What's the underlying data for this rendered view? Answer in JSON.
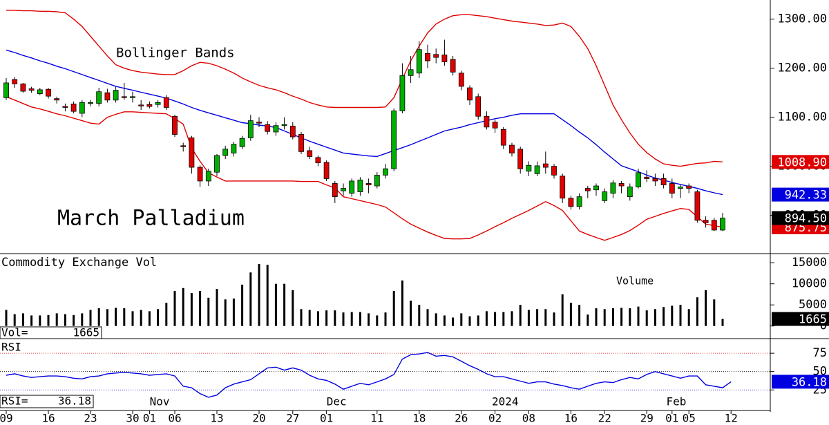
{
  "chart_data": [
    {
      "type": "candlestick",
      "title": "March Palladium",
      "annotation": "Bollinger Bands",
      "categories": [
        "09",
        null,
        null,
        null,
        null,
        "16",
        null,
        null,
        null,
        null,
        "23",
        null,
        null,
        null,
        null,
        "30",
        null,
        "01",
        null,
        null,
        "06",
        null,
        null,
        null,
        null,
        "13",
        null,
        null,
        null,
        null,
        "20",
        null,
        null,
        null,
        "27",
        null,
        null,
        null,
        "01",
        null,
        null,
        null,
        null,
        null,
        "11",
        null,
        null,
        null,
        null,
        "18",
        null,
        null,
        null,
        null,
        "26",
        null,
        null,
        null,
        "02",
        null,
        null,
        null,
        "08",
        null,
        null,
        null,
        null,
        "16",
        null,
        null,
        null,
        "22",
        null,
        null,
        null,
        null,
        "29",
        null,
        null,
        "01",
        null,
        "05",
        null,
        null,
        null,
        null,
        "12"
      ],
      "month_labels": [
        "Nov",
        "Dec",
        "2024",
        "Feb"
      ],
      "open": [
        1140,
        1177,
        1168,
        1158,
        1148,
        1157,
        1138,
        1122,
        1127,
        1108,
        1128,
        1128,
        1150,
        1135,
        1142,
        1140,
        1125,
        1126,
        1126,
        1140,
        1102,
        1042,
        1058,
        998,
        970,
        988,
        1022,
        1027,
        1040,
        1058,
        1090,
        1085,
        1070,
        1083,
        1082,
        1065,
        1032,
        1018,
        1008,
        965,
        950,
        945,
        948,
        965,
        960,
        982,
        995,
        1113,
        1185,
        1190,
        1230,
        1228,
        1227,
        1218,
        1190,
        1160,
        1142,
        1102,
        1090,
        1075,
        1043,
        1035,
        990,
        985,
        1005,
        1000,
        980,
        935,
        918,
        955,
        952,
        930,
        945,
        965,
        938,
        958,
        978,
        975,
        975,
        965,
        955,
        960,
        948,
        890,
        890,
        870,
        null
      ],
      "high": [
        1180,
        1182,
        1170,
        1162,
        1160,
        1160,
        1142,
        1128,
        1132,
        1135,
        1135,
        1160,
        1158,
        1162,
        1170,
        1152,
        1135,
        1132,
        1135,
        1145,
        1105,
        1048,
        1062,
        1002,
        995,
        1025,
        1042,
        1050,
        1062,
        1105,
        1100,
        1092,
        1090,
        1100,
        1090,
        1070,
        1040,
        1022,
        1012,
        970,
        965,
        975,
        978,
        975,
        988,
        1005,
        1118,
        1210,
        1225,
        1255,
        1248,
        1240,
        1258,
        1225,
        1195,
        1165,
        1148,
        1112,
        1095,
        1080,
        1048,
        1040,
        1010,
        1010,
        1030,
        1005,
        985,
        940,
        945,
        960,
        965,
        955,
        972,
        970,
        965,
        995,
        992,
        985,
        985,
        975,
        962,
        965,
        952,
        898,
        895,
        905,
        null
      ],
      "low": [
        1135,
        1160,
        1150,
        1150,
        1145,
        1138,
        1128,
        1112,
        1108,
        1100,
        1122,
        1122,
        1130,
        1130,
        1135,
        1130,
        1115,
        1118,
        1120,
        1115,
        1060,
        1030,
        985,
        958,
        960,
        980,
        1015,
        1020,
        1035,
        1052,
        1080,
        1065,
        1062,
        1075,
        1055,
        1025,
        1015,
        1000,
        970,
        925,
        940,
        938,
        940,
        945,
        955,
        975,
        990,
        1108,
        1170,
        1180,
        1200,
        1210,
        1205,
        1185,
        1155,
        1125,
        1095,
        1075,
        1068,
        1035,
        1020,
        985,
        980,
        980,
        985,
        975,
        925,
        912,
        912,
        935,
        940,
        925,
        935,
        945,
        930,
        955,
        968,
        960,
        955,
        935,
        935,
        945,
        885,
        875,
        868,
        868,
        null
      ],
      "close": [
        1170,
        1168,
        1153,
        1155,
        1156,
        1143,
        1135,
        1120,
        1112,
        1130,
        1130,
        1152,
        1135,
        1155,
        1140,
        1142,
        1123,
        1122,
        1130,
        1120,
        1065,
        1040,
        998,
        970,
        990,
        1022,
        1035,
        1045,
        1057,
        1093,
        1088,
        1071,
        1083,
        1085,
        1060,
        1030,
        1020,
        1007,
        975,
        938,
        955,
        970,
        972,
        962,
        982,
        995,
        1113,
        1185,
        1197,
        1238,
        1215,
        1222,
        1213,
        1192,
        1163,
        1135,
        1102,
        1080,
        1078,
        1043,
        1027,
        995,
        1002,
        1001,
        998,
        982,
        935,
        918,
        938,
        950,
        960,
        948,
        966,
        960,
        958,
        987,
        975,
        970,
        962,
        945,
        958,
        955,
        890,
        885,
        870,
        894.5,
        null
      ],
      "close_last_label": "894.50",
      "up_color": "#00b000",
      "down_color": "#e00000",
      "bands": [
        {
          "color": "#e00000",
          "last_label": "1008.90",
          "values": [
            1318,
            1318,
            1317,
            1317,
            1316,
            1316,
            1315,
            1313,
            1300,
            1285,
            1265,
            1245,
            1225,
            1207,
            1200,
            1195,
            1192,
            1190,
            1188,
            1187,
            1187,
            1195,
            1205,
            1212,
            1210,
            1205,
            1198,
            1190,
            1180,
            1172,
            1165,
            1160,
            1156,
            1150,
            1143,
            1137,
            1130,
            1125,
            1121,
            1120,
            1120,
            1120,
            1120,
            1120,
            1120,
            1121,
            1140,
            1178,
            1215,
            1245,
            1272,
            1290,
            1300,
            1307,
            1309,
            1309,
            1307,
            1305,
            1302,
            1299,
            1296,
            1294,
            1292,
            1290,
            1287,
            1288,
            1292,
            1285,
            1265,
            1240,
            1205,
            1165,
            1125,
            1095,
            1068,
            1045,
            1028,
            1015,
            1005,
            1002,
            1000,
            1003,
            1006,
            1007,
            1010,
            1008.9,
            null
          ]
        },
        {
          "color": "#0000e0",
          "values": [
            1237,
            1232,
            1226,
            1221,
            1215,
            1210,
            1204,
            1199,
            1193,
            1187,
            1181,
            1175,
            1169,
            1163,
            1159,
            1155,
            1151,
            1147,
            1143,
            1139,
            1133,
            1127,
            1120,
            1114,
            1109,
            1104,
            1099,
            1094,
            1089,
            1087,
            1084,
            1082,
            1079,
            1072,
            1065,
            1058,
            1051,
            1045,
            1039,
            1033,
            1027,
            1025,
            1023,
            1021,
            1020,
            1026,
            1032,
            1038,
            1044,
            1051,
            1058,
            1065,
            1072,
            1076,
            1080,
            1085,
            1089,
            1093,
            1097,
            1100,
            1104,
            1107,
            1107,
            1107,
            1107,
            1107,
            1095,
            1083,
            1070,
            1058,
            1044,
            1029,
            1015,
            1001,
            995,
            989,
            982,
            976,
            972,
            967,
            963,
            959,
            955,
            950,
            946,
            942.33,
            null
          ]
        },
        {
          "color": "#e00000",
          "values": [
            1142,
            1135,
            1128,
            1121,
            1117,
            1112,
            1107,
            1103,
            1098,
            1093,
            1088,
            1086,
            1100,
            1106,
            1111,
            1111,
            1110,
            1109,
            1108,
            1107,
            1097,
            1086,
            1037,
            1010,
            987,
            978,
            970,
            970,
            970,
            970,
            970,
            970,
            970,
            970,
            970,
            969,
            969,
            969,
            962,
            956,
            938,
            934,
            930,
            926,
            922,
            917,
            905,
            893,
            882,
            874,
            866,
            859,
            853,
            852,
            852,
            853,
            860,
            868,
            877,
            885,
            894,
            902,
            910,
            919,
            928,
            920,
            910,
            889,
            868,
            861,
            855,
            849,
            855,
            861,
            869,
            880,
            892,
            898,
            904,
            909,
            914,
            912,
            897,
            882,
            879,
            875.75,
            null
          ]
        }
      ],
      "ylim": [
        822,
        1339
      ],
      "yticks": [
        {
          "value": 900,
          "label": "900.00"
        },
        {
          "value": 1000,
          "label": "1000.00"
        },
        {
          "value": 1100,
          "label": "1100.00"
        },
        {
          "value": 1200,
          "label": "1200.00"
        },
        {
          "value": 1300,
          "label": "1300.00"
        }
      ]
    },
    {
      "type": "bar",
      "title": "Commodity Exchange Vol",
      "annotation": "Volume",
      "readout_label": "Vol=",
      "color": "#000000",
      "values": [
        3800,
        2800,
        3000,
        2500,
        2500,
        2600,
        3000,
        2800,
        2600,
        3000,
        3800,
        4200,
        4000,
        4300,
        4200,
        3500,
        3800,
        3500,
        4000,
        5500,
        8300,
        9000,
        7800,
        8300,
        6700,
        8800,
        6300,
        6500,
        9800,
        12700,
        14700,
        14500,
        10000,
        10000,
        8500,
        4000,
        3800,
        3500,
        3700,
        3700,
        3200,
        3300,
        3300,
        3000,
        2500,
        3200,
        8300,
        10800,
        6000,
        5000,
        4000,
        3000,
        2500,
        2000,
        3000,
        2300,
        2500,
        3500,
        3300,
        3300,
        3500,
        5000,
        3800,
        4000,
        4000,
        3200,
        7500,
        5500,
        5000,
        2700,
        4200,
        4000,
        4200,
        4300,
        4200,
        4600,
        3700,
        4000,
        4500,
        4800,
        5000,
        4000,
        6800,
        8500,
        6300,
        1665,
        null
      ],
      "ylim": [
        -3000,
        17000
      ],
      "yticks": [
        0,
        5000,
        10000,
        15000
      ]
    },
    {
      "type": "line",
      "title": "RSI",
      "readout_label": "RSI=",
      "color": "#0000e0",
      "values": [
        45,
        47,
        44,
        42,
        43,
        44,
        44,
        43,
        41,
        40,
        43,
        44,
        47,
        48,
        49,
        48,
        47,
        45,
        46,
        47,
        44,
        30,
        28,
        20,
        15,
        18,
        28,
        33,
        36,
        39,
        47,
        55,
        56,
        52,
        55,
        52,
        45,
        40,
        38,
        33,
        26,
        30,
        34,
        32,
        36,
        40,
        46,
        67,
        73,
        74,
        76,
        71,
        72,
        70,
        64,
        58,
        53,
        47,
        43,
        43,
        40,
        37,
        34,
        36,
        36,
        33,
        31,
        28,
        26,
        30,
        34,
        36,
        35,
        39,
        42,
        40,
        46,
        50,
        47,
        44,
        41,
        44,
        44,
        32,
        30,
        28,
        36.18,
        null
      ],
      "ylim": [
        -3,
        93
      ],
      "yticks": [
        25,
        50,
        75
      ]
    }
  ]
}
